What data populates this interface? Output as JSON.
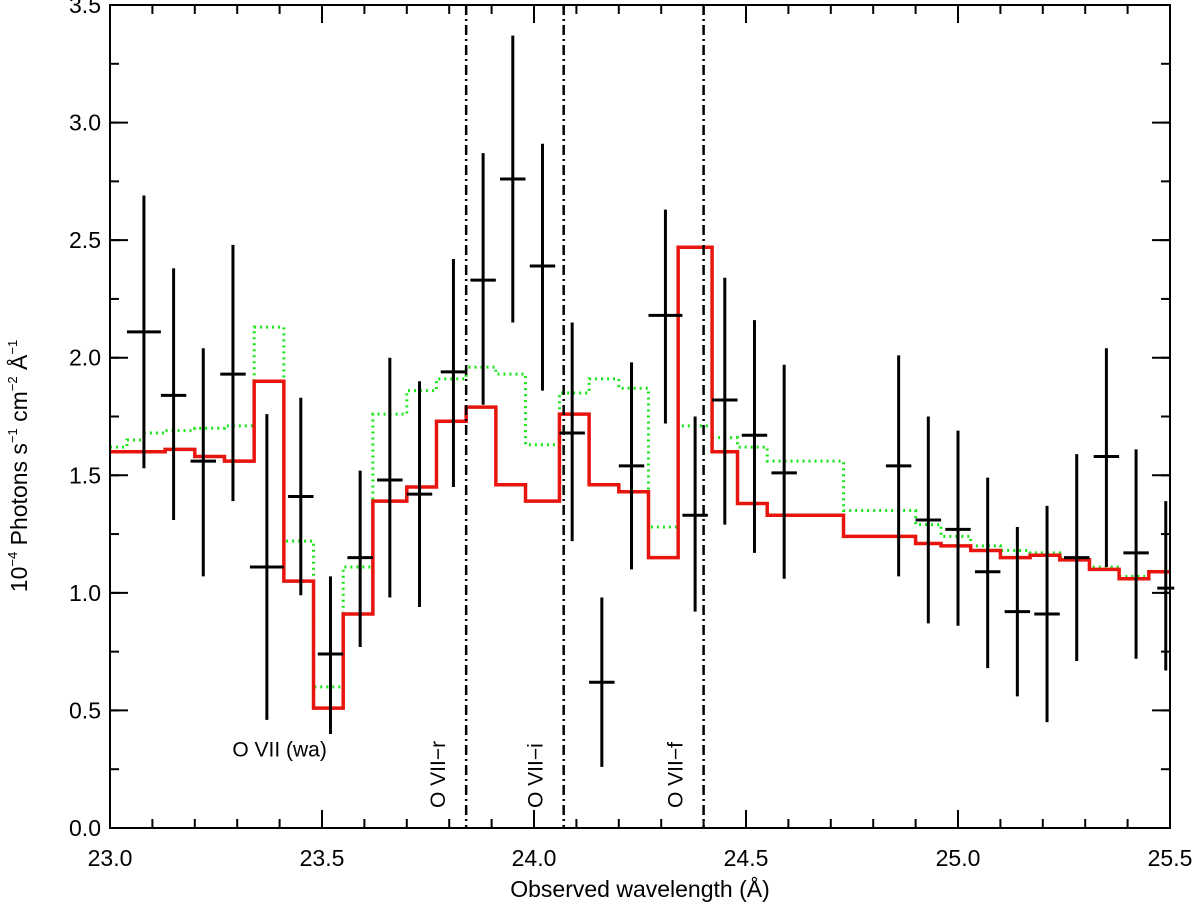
{
  "chart_data": {
    "type": "line",
    "title": "",
    "xlabel": "Observed wavelength (Å)",
    "ylabel": {
      "prefix": "10",
      "prefix_exp": "−4",
      "part1": " Photons s",
      "exp1": "−1",
      "part2": " cm",
      "exp2": "−2",
      "part3": " Å",
      "exp3": "−1"
    },
    "xlim": [
      23.0,
      25.5
    ],
    "ylim": [
      0.0,
      3.5
    ],
    "x_ticks": [
      {
        "value": 23.0,
        "label": "23.0"
      },
      {
        "value": 23.5,
        "label": "23.5"
      },
      {
        "value": 24.0,
        "label": "24.0"
      },
      {
        "value": 24.5,
        "label": "24.5"
      },
      {
        "value": 25.0,
        "label": "25.0"
      },
      {
        "value": 25.5,
        "label": "25.5"
      }
    ],
    "x_minor_step": 0.1,
    "y_ticks": [
      {
        "value": 0.0,
        "label": "0.0"
      },
      {
        "value": 0.5,
        "label": "0.5"
      },
      {
        "value": 1.0,
        "label": "1.0"
      },
      {
        "value": 1.5,
        "label": "1.5"
      },
      {
        "value": 2.0,
        "label": "2.0"
      },
      {
        "value": 2.5,
        "label": "2.5"
      },
      {
        "value": 3.0,
        "label": "3.0"
      },
      {
        "value": 3.5,
        "label": "3.5"
      }
    ],
    "y_minor_step": 0.25,
    "data_points": [
      {
        "x": 23.08,
        "y": 2.11,
        "xerr": 0.04,
        "ylo": 1.53,
        "yhi": 2.69
      },
      {
        "x": 23.15,
        "y": 1.84,
        "xerr": 0.03,
        "ylo": 1.31,
        "yhi": 2.38
      },
      {
        "x": 23.22,
        "y": 1.56,
        "xerr": 0.03,
        "ylo": 1.07,
        "yhi": 2.04
      },
      {
        "x": 23.29,
        "y": 1.93,
        "xerr": 0.03,
        "ylo": 1.39,
        "yhi": 2.48
      },
      {
        "x": 23.37,
        "y": 1.11,
        "xerr": 0.04,
        "ylo": 0.46,
        "yhi": 1.76
      },
      {
        "x": 23.45,
        "y": 1.41,
        "xerr": 0.03,
        "ylo": 0.99,
        "yhi": 1.83
      },
      {
        "x": 23.52,
        "y": 0.74,
        "xerr": 0.03,
        "ylo": 0.4,
        "yhi": 1.07
      },
      {
        "x": 23.59,
        "y": 1.15,
        "xerr": 0.03,
        "ylo": 0.77,
        "yhi": 1.52
      },
      {
        "x": 23.66,
        "y": 1.48,
        "xerr": 0.03,
        "ylo": 0.98,
        "yhi": 2.0
      },
      {
        "x": 23.73,
        "y": 1.42,
        "xerr": 0.03,
        "ylo": 0.94,
        "yhi": 1.9
      },
      {
        "x": 23.81,
        "y": 1.94,
        "xerr": 0.03,
        "ylo": 1.45,
        "yhi": 2.42
      },
      {
        "x": 23.88,
        "y": 2.33,
        "xerr": 0.03,
        "ylo": 1.8,
        "yhi": 2.87
      },
      {
        "x": 23.95,
        "y": 2.76,
        "xerr": 0.03,
        "ylo": 2.15,
        "yhi": 3.37
      },
      {
        "x": 24.02,
        "y": 2.39,
        "xerr": 0.03,
        "ylo": 1.86,
        "yhi": 2.91
      },
      {
        "x": 24.09,
        "y": 1.68,
        "xerr": 0.03,
        "ylo": 1.22,
        "yhi": 2.15
      },
      {
        "x": 24.16,
        "y": 0.62,
        "xerr": 0.03,
        "ylo": 0.26,
        "yhi": 0.98
      },
      {
        "x": 24.23,
        "y": 1.54,
        "xerr": 0.03,
        "ylo": 1.1,
        "yhi": 1.98
      },
      {
        "x": 24.31,
        "y": 2.18,
        "xerr": 0.04,
        "ylo": 1.72,
        "yhi": 2.63
      },
      {
        "x": 24.38,
        "y": 1.33,
        "xerr": 0.03,
        "ylo": 0.92,
        "yhi": 1.75
      },
      {
        "x": 24.45,
        "y": 1.82,
        "xerr": 0.03,
        "ylo": 1.29,
        "yhi": 2.34
      },
      {
        "x": 24.52,
        "y": 1.67,
        "xerr": 0.03,
        "ylo": 1.17,
        "yhi": 2.16
      },
      {
        "x": 24.59,
        "y": 1.51,
        "xerr": 0.03,
        "ylo": 1.06,
        "yhi": 1.97
      },
      {
        "x": 24.86,
        "y": 1.54,
        "xerr": 0.03,
        "ylo": 1.07,
        "yhi": 2.01
      },
      {
        "x": 24.93,
        "y": 1.31,
        "xerr": 0.03,
        "ylo": 0.87,
        "yhi": 1.75
      },
      {
        "x": 25.0,
        "y": 1.27,
        "xerr": 0.03,
        "ylo": 0.86,
        "yhi": 1.69
      },
      {
        "x": 25.07,
        "y": 1.09,
        "xerr": 0.03,
        "ylo": 0.68,
        "yhi": 1.49
      },
      {
        "x": 25.14,
        "y": 0.92,
        "xerr": 0.03,
        "ylo": 0.56,
        "yhi": 1.28
      },
      {
        "x": 25.21,
        "y": 0.91,
        "xerr": 0.03,
        "ylo": 0.45,
        "yhi": 1.37
      },
      {
        "x": 25.28,
        "y": 1.15,
        "xerr": 0.03,
        "ylo": 0.71,
        "yhi": 1.59
      },
      {
        "x": 25.35,
        "y": 1.58,
        "xerr": 0.03,
        "ylo": 1.11,
        "yhi": 2.04
      },
      {
        "x": 25.42,
        "y": 1.17,
        "xerr": 0.03,
        "ylo": 0.72,
        "yhi": 1.61
      },
      {
        "x": 25.49,
        "y": 1.02,
        "xerr": 0.02,
        "ylo": 0.67,
        "yhi": 1.39
      }
    ],
    "series": [
      {
        "name": "model-red",
        "color": "#e8150e",
        "style": "solid",
        "steps": [
          [
            23.0,
            1.6
          ],
          [
            23.13,
            1.61
          ],
          [
            23.2,
            1.58
          ],
          [
            23.27,
            1.56
          ],
          [
            23.34,
            1.9
          ],
          [
            23.41,
            1.05
          ],
          [
            23.48,
            0.51
          ],
          [
            23.55,
            0.91
          ],
          [
            23.62,
            1.39
          ],
          [
            23.7,
            1.45
          ],
          [
            23.77,
            1.73
          ],
          [
            23.84,
            1.79
          ],
          [
            23.91,
            1.46
          ],
          [
            23.98,
            1.39
          ],
          [
            24.06,
            1.76
          ],
          [
            24.13,
            1.46
          ],
          [
            24.2,
            1.43
          ],
          [
            24.27,
            1.15
          ],
          [
            24.34,
            2.47
          ],
          [
            24.42,
            1.6
          ],
          [
            24.48,
            1.38
          ],
          [
            24.55,
            1.33
          ],
          [
            24.73,
            1.24
          ],
          [
            24.9,
            1.21
          ],
          [
            24.96,
            1.2
          ],
          [
            25.03,
            1.18
          ],
          [
            25.1,
            1.15
          ],
          [
            25.17,
            1.16
          ],
          [
            25.24,
            1.14
          ],
          [
            25.31,
            1.1
          ],
          [
            25.38,
            1.06
          ],
          [
            25.45,
            1.09
          ]
        ],
        "end_x": 25.5
      },
      {
        "name": "model-green",
        "color": "#19e619",
        "style": "dotted",
        "steps": [
          [
            23.0,
            1.62
          ],
          [
            23.04,
            1.65
          ],
          [
            23.08,
            1.68
          ],
          [
            23.13,
            1.69
          ],
          [
            23.2,
            1.7
          ],
          [
            23.27,
            1.71
          ],
          [
            23.34,
            2.13
          ],
          [
            23.41,
            1.22
          ],
          [
            23.48,
            0.6
          ],
          [
            23.55,
            1.11
          ],
          [
            23.62,
            1.76
          ],
          [
            23.7,
            1.86
          ],
          [
            23.77,
            1.91
          ],
          [
            23.84,
            1.96
          ],
          [
            23.91,
            1.93
          ],
          [
            23.98,
            1.63
          ],
          [
            24.06,
            1.85
          ],
          [
            24.13,
            1.91
          ],
          [
            24.2,
            1.87
          ],
          [
            24.27,
            1.28
          ],
          [
            24.34,
            1.71
          ],
          [
            24.42,
            1.66
          ],
          [
            24.48,
            1.62
          ],
          [
            24.55,
            1.56
          ],
          [
            24.73,
            1.35
          ],
          [
            24.9,
            1.29
          ],
          [
            24.96,
            1.24
          ],
          [
            25.03,
            1.2
          ],
          [
            25.1,
            1.18
          ],
          [
            25.17,
            1.17
          ],
          [
            25.24,
            1.15
          ],
          [
            25.31,
            1.11
          ],
          [
            25.38,
            1.07
          ],
          [
            25.45,
            1.09
          ]
        ],
        "end_x": 25.5
      }
    ],
    "vertical_lines": [
      {
        "x": 23.84,
        "label": "O VII−r"
      },
      {
        "x": 24.07,
        "label": "O VII−i"
      },
      {
        "x": 24.4,
        "label": "O VII−f"
      }
    ],
    "annotations": [
      {
        "x": 23.4,
        "y": 0.33,
        "text": "O VII (wa)"
      }
    ],
    "colors": {
      "axis": "#000000",
      "data": "#000000",
      "red_model": "#e8150e",
      "green_model": "#19e619"
    }
  }
}
